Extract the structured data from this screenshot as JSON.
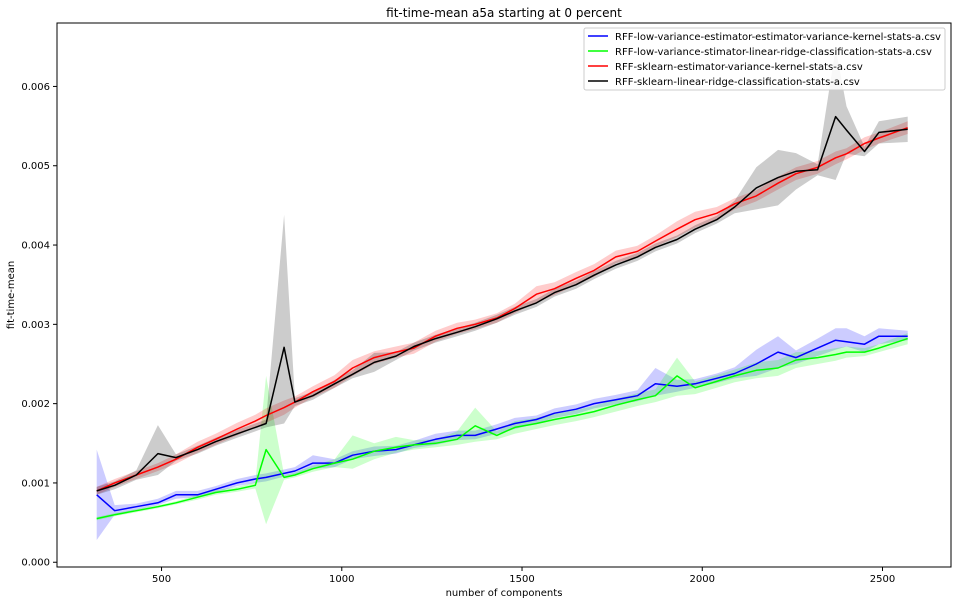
{
  "chart_data": {
    "type": "line",
    "title": "fit-time-mean a5a starting at 0 percent",
    "xlabel": "number of components",
    "ylabel": "fit-time-mean",
    "xlim": [
      210,
      2690
    ],
    "ylim": [
      -6e-05,
      0.0068
    ],
    "xticks": [
      500,
      1000,
      1500,
      2000,
      2500
    ],
    "xtick_labels": [
      "500",
      "1000",
      "1500",
      "2000",
      "2500"
    ],
    "yticks": [
      0.0,
      0.001,
      0.002,
      0.003,
      0.004,
      0.005,
      0.006
    ],
    "ytick_labels": [
      "0.000",
      "0.001",
      "0.002",
      "0.003",
      "0.004",
      "0.005",
      "0.006"
    ],
    "legend_position": "top-right",
    "x": [
      320,
      370,
      430,
      490,
      540,
      600,
      650,
      710,
      760,
      790,
      840,
      870,
      920,
      980,
      1030,
      1090,
      1150,
      1200,
      1260,
      1320,
      1370,
      1430,
      1480,
      1540,
      1590,
      1650,
      1700,
      1760,
      1820,
      1870,
      1930,
      1980,
      2040,
      2090,
      2150,
      2210,
      2260,
      2320,
      2370,
      2400,
      2450,
      2490,
      2570
    ],
    "series": [
      {
        "name": "RFF-low-variance-estimator-estimator-variance-kernel-stats-a.csv",
        "color": "#0000ff",
        "values": [
          0.00085,
          0.00065,
          0.0007,
          0.00075,
          0.00085,
          0.00085,
          0.00092,
          0.001,
          0.00105,
          0.00107,
          0.00112,
          0.00115,
          0.00125,
          0.00125,
          0.00135,
          0.0014,
          0.00142,
          0.00148,
          0.00155,
          0.0016,
          0.0016,
          0.00168,
          0.00175,
          0.0018,
          0.00188,
          0.00193,
          0.002,
          0.00205,
          0.0021,
          0.00225,
          0.00222,
          0.00225,
          0.00232,
          0.00238,
          0.0025,
          0.00265,
          0.00258,
          0.0027,
          0.0028,
          0.00278,
          0.00275,
          0.00285,
          0.00285
        ],
        "lower": [
          0.00028,
          0.0006,
          0.00066,
          0.00072,
          0.0008,
          0.00082,
          0.00088,
          0.00096,
          0.001,
          0.00102,
          0.00108,
          0.00111,
          0.00118,
          0.0012,
          0.0013,
          0.00134,
          0.00137,
          0.00144,
          0.00148,
          0.00154,
          0.00155,
          0.00162,
          0.00168,
          0.00175,
          0.00182,
          0.00187,
          0.00194,
          0.00199,
          0.00203,
          0.0021,
          0.00215,
          0.0022,
          0.00226,
          0.00232,
          0.00235,
          0.00245,
          0.0025,
          0.0026,
          0.00268,
          0.00272,
          0.00265,
          0.00275,
          0.0028
        ],
        "upper": [
          0.00142,
          0.00072,
          0.00074,
          0.0008,
          0.0009,
          0.0009,
          0.00096,
          0.00105,
          0.0011,
          0.00112,
          0.00117,
          0.0012,
          0.00135,
          0.0013,
          0.0014,
          0.00146,
          0.00147,
          0.00153,
          0.00162,
          0.00166,
          0.00166,
          0.00174,
          0.00182,
          0.00185,
          0.00194,
          0.00199,
          0.00206,
          0.00211,
          0.00217,
          0.00245,
          0.0023,
          0.00231,
          0.00238,
          0.00246,
          0.00268,
          0.00285,
          0.00267,
          0.00282,
          0.00295,
          0.00295,
          0.00285,
          0.00295,
          0.00292
        ]
      },
      {
        "name": "RFF-low-variance-stimator-linear-ridge-classification-stats-a.csv",
        "color": "#00ff00",
        "values": [
          0.00055,
          0.0006,
          0.00065,
          0.0007,
          0.00075,
          0.00082,
          0.00088,
          0.00092,
          0.00097,
          0.00142,
          0.00107,
          0.0011,
          0.00118,
          0.00125,
          0.0013,
          0.0014,
          0.00145,
          0.00148,
          0.0015,
          0.00155,
          0.00172,
          0.0016,
          0.0017,
          0.00175,
          0.0018,
          0.00185,
          0.0019,
          0.00198,
          0.00205,
          0.0021,
          0.00235,
          0.0022,
          0.00228,
          0.00235,
          0.00242,
          0.00245,
          0.00255,
          0.00258,
          0.00262,
          0.00265,
          0.00265,
          0.0027,
          0.00282
        ],
        "lower": [
          0.00053,
          0.00058,
          0.00063,
          0.00068,
          0.00073,
          0.00079,
          0.00085,
          0.00089,
          0.00093,
          0.00048,
          0.00104,
          0.00107,
          0.00114,
          0.0012,
          0.00118,
          0.0013,
          0.00138,
          0.00142,
          0.00145,
          0.00148,
          0.00152,
          0.00155,
          0.00162,
          0.00168,
          0.00173,
          0.00178,
          0.00183,
          0.0019,
          0.00197,
          0.00202,
          0.0021,
          0.00212,
          0.0022,
          0.00227,
          0.00232,
          0.00235,
          0.00245,
          0.0025,
          0.00254,
          0.00258,
          0.0026,
          0.00265,
          0.00275
        ],
        "upper": [
          0.00057,
          0.00062,
          0.00067,
          0.00072,
          0.00077,
          0.00085,
          0.00091,
          0.00095,
          0.00101,
          0.00235,
          0.0011,
          0.00113,
          0.00122,
          0.0013,
          0.0016,
          0.0015,
          0.00158,
          0.00154,
          0.00155,
          0.00165,
          0.00195,
          0.00165,
          0.00178,
          0.00182,
          0.00187,
          0.00192,
          0.00197,
          0.00206,
          0.00213,
          0.00218,
          0.00258,
          0.00228,
          0.00236,
          0.00243,
          0.00252,
          0.00255,
          0.00265,
          0.00266,
          0.0027,
          0.00272,
          0.0027,
          0.00275,
          0.00289
        ]
      },
      {
        "name": "RFF-sklearn-estimator-variance-kernel-stats-a.csv",
        "color": "#ff0000",
        "values": [
          0.0009,
          0.001,
          0.0011,
          0.0012,
          0.0013,
          0.00145,
          0.00155,
          0.00168,
          0.00178,
          0.00185,
          0.00195,
          0.00202,
          0.00215,
          0.00228,
          0.00245,
          0.00258,
          0.00265,
          0.0027,
          0.00285,
          0.00295,
          0.003,
          0.00308,
          0.0032,
          0.00338,
          0.00345,
          0.00358,
          0.00368,
          0.00385,
          0.00392,
          0.00405,
          0.0042,
          0.00432,
          0.0044,
          0.00452,
          0.00462,
          0.00478,
          0.0049,
          0.00498,
          0.0051,
          0.00515,
          0.00528,
          0.00535,
          0.00548
        ],
        "lower": [
          0.00085,
          0.00095,
          0.00105,
          0.00115,
          0.00124,
          0.00138,
          0.00148,
          0.0016,
          0.0017,
          0.00176,
          0.00186,
          0.00195,
          0.00208,
          0.0022,
          0.00235,
          0.0025,
          0.00258,
          0.00263,
          0.00278,
          0.00288,
          0.00294,
          0.00302,
          0.00314,
          0.00328,
          0.00337,
          0.0035,
          0.0036,
          0.00377,
          0.00385,
          0.00398,
          0.0041,
          0.00422,
          0.00432,
          0.00445,
          0.00455,
          0.0047,
          0.00482,
          0.0049,
          0.00502,
          0.00508,
          0.0052,
          0.00528,
          0.0054
        ],
        "upper": [
          0.00095,
          0.00105,
          0.00115,
          0.00125,
          0.00136,
          0.00152,
          0.00162,
          0.00176,
          0.00186,
          0.00194,
          0.00204,
          0.00209,
          0.00222,
          0.00236,
          0.00255,
          0.00266,
          0.00272,
          0.00277,
          0.00292,
          0.00302,
          0.00306,
          0.00314,
          0.00326,
          0.00348,
          0.00353,
          0.00366,
          0.00376,
          0.00393,
          0.00399,
          0.00412,
          0.0043,
          0.00442,
          0.00448,
          0.00459,
          0.00469,
          0.00486,
          0.00498,
          0.00506,
          0.00518,
          0.00522,
          0.00536,
          0.00542,
          0.00556
        ]
      },
      {
        "name": "RFF-sklearn-linear-ridge-classification-stats-a.csv",
        "color": "#000000",
        "values": [
          0.0009,
          0.00097,
          0.0011,
          0.00137,
          0.00132,
          0.00142,
          0.00152,
          0.00162,
          0.0017,
          0.00175,
          0.00271,
          0.00202,
          0.0021,
          0.00225,
          0.00237,
          0.00252,
          0.0026,
          0.00272,
          0.00282,
          0.0029,
          0.00297,
          0.00307,
          0.00317,
          0.00327,
          0.0034,
          0.0035,
          0.00362,
          0.00375,
          0.00385,
          0.00397,
          0.00407,
          0.0042,
          0.00432,
          0.00448,
          0.00472,
          0.00485,
          0.00493,
          0.00495,
          0.00562,
          0.00545,
          0.00518,
          0.00542,
          0.00546
        ],
        "lower": [
          0.00085,
          0.00092,
          0.00104,
          0.0011,
          0.00128,
          0.00137,
          0.00147,
          0.00157,
          0.00165,
          0.0017,
          0.00175,
          0.00197,
          0.00205,
          0.0022,
          0.00232,
          0.0024,
          0.00255,
          0.00267,
          0.00277,
          0.00285,
          0.00292,
          0.00302,
          0.00312,
          0.00322,
          0.00335,
          0.00345,
          0.00357,
          0.0037,
          0.0038,
          0.00392,
          0.00402,
          0.00415,
          0.00427,
          0.0044,
          0.00445,
          0.0045,
          0.0047,
          0.00488,
          0.00482,
          0.00515,
          0.00512,
          0.00528,
          0.0053
        ],
        "upper": [
          0.00095,
          0.00102,
          0.00116,
          0.00173,
          0.00136,
          0.00147,
          0.00157,
          0.00167,
          0.00175,
          0.0018,
          0.00438,
          0.00207,
          0.00215,
          0.0023,
          0.00242,
          0.00264,
          0.00265,
          0.00277,
          0.00287,
          0.00295,
          0.00302,
          0.00312,
          0.00322,
          0.00332,
          0.00345,
          0.00355,
          0.00367,
          0.0038,
          0.0039,
          0.00402,
          0.00412,
          0.00425,
          0.00437,
          0.00456,
          0.00498,
          0.0052,
          0.00516,
          0.00502,
          0.00648,
          0.00575,
          0.00524,
          0.00556,
          0.00562
        ]
      }
    ]
  }
}
